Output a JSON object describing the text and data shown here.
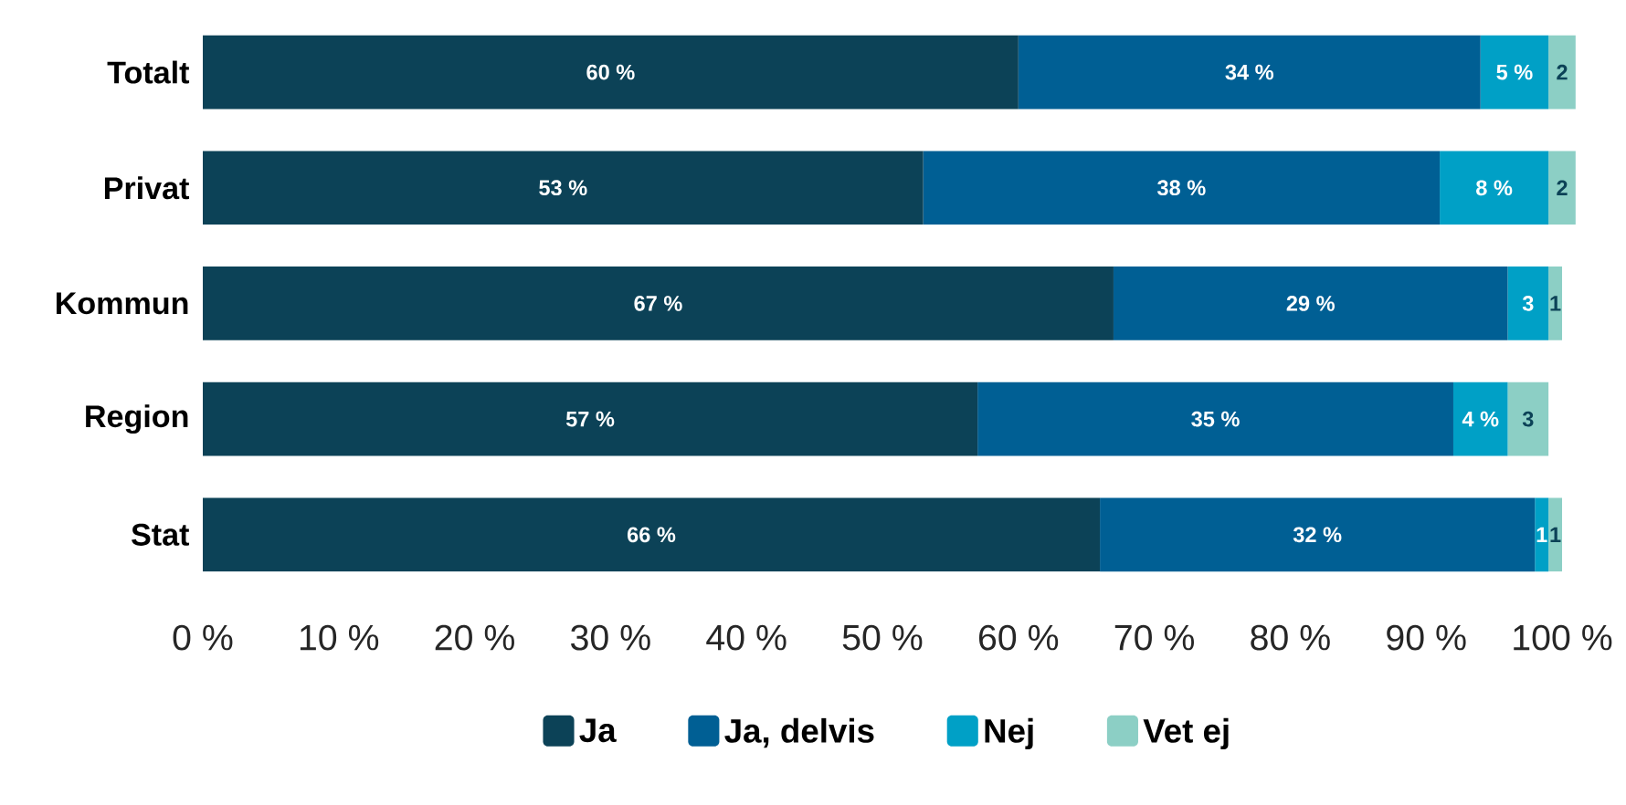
{
  "chart_data": {
    "type": "bar",
    "orientation": "horizontal",
    "stacked": true,
    "categories": [
      "Totalt",
      "Privat",
      "Kommun",
      "Region",
      "Stat"
    ],
    "series": [
      {
        "name": "Ja",
        "color": "#0c4257",
        "values": [
          60,
          53,
          67,
          57,
          66
        ],
        "value_labels": [
          "60 %",
          "53 %",
          "67 %",
          "57 %",
          "66 %"
        ]
      },
      {
        "name": "Ja, delvis",
        "color": "#005f94",
        "values": [
          34,
          38,
          29,
          35,
          32
        ],
        "value_labels": [
          "34 %",
          "38 %",
          "29 %",
          "35 %",
          "32 %"
        ]
      },
      {
        "name": "Nej",
        "color": "#00a0c6",
        "values": [
          5,
          8,
          3,
          4,
          1
        ],
        "value_labels": [
          "5 %",
          "8 %",
          "3",
          "4 %",
          "1"
        ]
      },
      {
        "name": "Vet ej",
        "color": "#8ccfc5",
        "values": [
          2,
          2,
          1,
          3,
          1
        ],
        "value_labels": [
          "2",
          "2",
          "1",
          "3",
          "1"
        ]
      }
    ],
    "xlim": [
      0,
      101
    ],
    "xticks": [
      {
        "value": 0,
        "label": "0 %"
      },
      {
        "value": 10,
        "label": "10 %"
      },
      {
        "value": 20,
        "label": "20 %"
      },
      {
        "value": 30,
        "label": "30 %"
      },
      {
        "value": 40,
        "label": "40 %"
      },
      {
        "value": 50,
        "label": "50 %"
      },
      {
        "value": 60,
        "label": "60 %"
      },
      {
        "value": 70,
        "label": "70 %"
      },
      {
        "value": 80,
        "label": "80 %"
      },
      {
        "value": 90,
        "label": "90 %"
      },
      {
        "value": 100,
        "label": "100 %"
      }
    ],
    "legend": "bottom"
  }
}
